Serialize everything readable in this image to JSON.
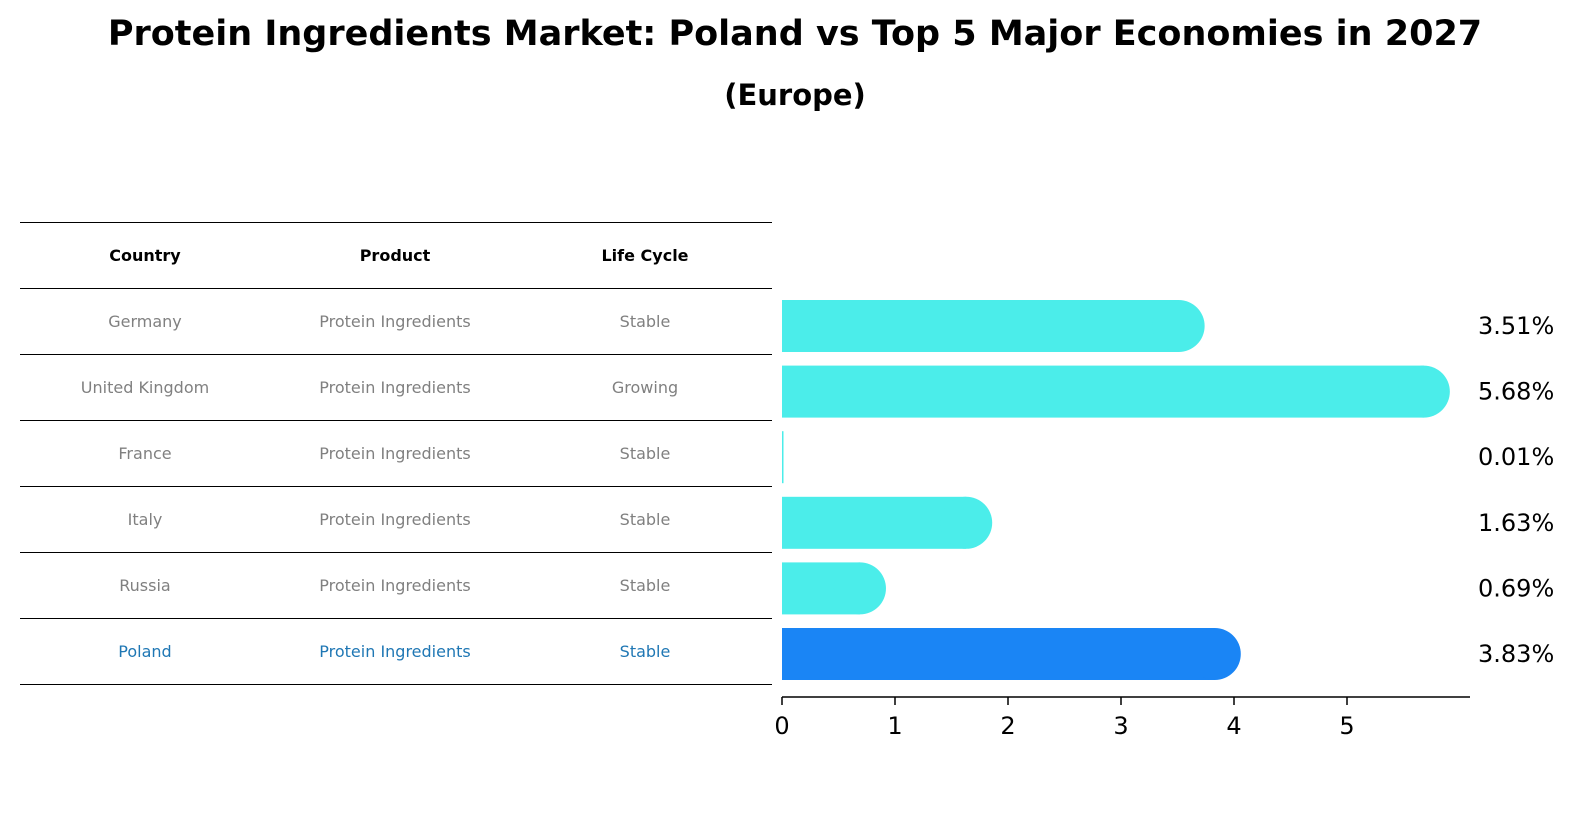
{
  "title": "Protein Ingredients Market: Poland vs Top 5 Major Economies in 2027",
  "subtitle": "(Europe)",
  "table": {
    "headers": [
      "Country",
      "Product",
      "Life Cycle"
    ],
    "rows": [
      [
        "Germany",
        "Protein Ingredients",
        "Stable"
      ],
      [
        "United Kingdom",
        "Protein Ingredients",
        "Growing"
      ],
      [
        "France",
        "Protein Ingredients",
        "Stable"
      ],
      [
        "Italy",
        "Protein Ingredients",
        "Stable"
      ],
      [
        "Russia",
        "Protein Ingredients",
        "Stable"
      ],
      [
        "Poland",
        "Protein Ingredients",
        "Stable"
      ]
    ],
    "highlight_row": 5
  },
  "chart_data": {
    "type": "bar",
    "orientation": "horizontal",
    "categories": [
      "Germany",
      "United Kingdom",
      "France",
      "Italy",
      "Russia",
      "Poland"
    ],
    "values": [
      3.51,
      5.68,
      0.01,
      1.63,
      0.69,
      3.83
    ],
    "value_labels": [
      "3.51%",
      "5.68%",
      "0.01%",
      "1.63%",
      "0.69%",
      "3.83%"
    ],
    "xticks": [
      0,
      1,
      2,
      3,
      4,
      5
    ],
    "xlim": [
      0,
      5.96
    ],
    "colors": {
      "default": "#4BEDEA",
      "highlight": "#1A85F5"
    },
    "highlight_index": 5
  }
}
